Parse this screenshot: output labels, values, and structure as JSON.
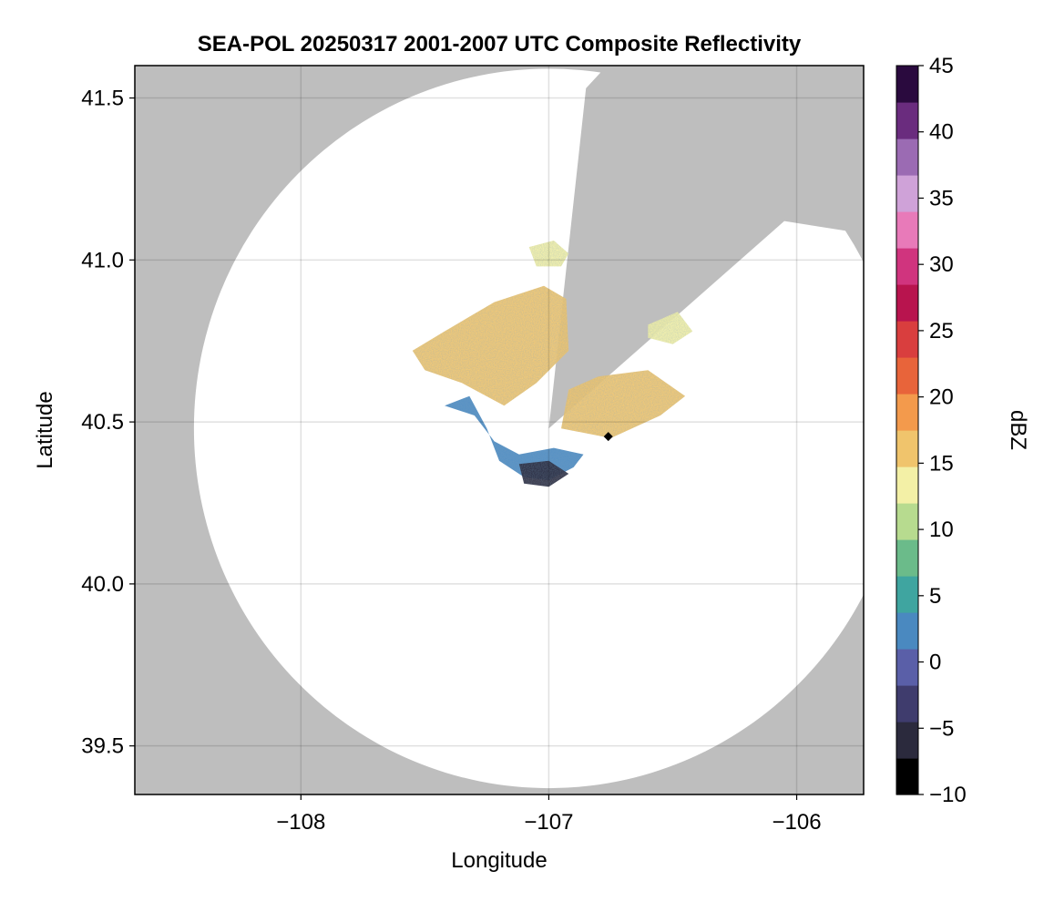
{
  "chart_data": {
    "type": "heatmap",
    "title": "SEA-POL 20250317 2001-2007 UTC Composite Reflectivity",
    "xlabel": "Longitude",
    "ylabel": "Latitude",
    "xlim": [
      -108.67,
      -105.73
    ],
    "ylim": [
      39.35,
      41.6
    ],
    "xticks": [
      -108,
      -107,
      -106
    ],
    "xtick_labels": [
      "−108",
      "−107",
      "−106"
    ],
    "yticks": [
      39.5,
      40.0,
      40.5,
      41.0,
      41.5
    ],
    "ytick_labels": [
      "39.5",
      "40.0",
      "40.5",
      "41.0",
      "41.5"
    ],
    "grid": true,
    "background_color": "#bebebe",
    "coverage_color": "#ffffff",
    "radar_center": {
      "lon": -107.0,
      "lat": 40.48
    },
    "coverage_radius_deg_lat": 1.11,
    "blocked_sector": {
      "from_point_to_lon_lat": [
        [
          -106.85,
          41.53
        ],
        [
          -106.05,
          41.12
        ]
      ]
    },
    "colorbar": {
      "label": "dBZ",
      "min": -10,
      "max": 45,
      "ticks": [
        -10,
        -5,
        0,
        5,
        10,
        15,
        20,
        25,
        30,
        35,
        40,
        45
      ],
      "tick_labels": [
        "−10",
        "−5",
        "0",
        "5",
        "10",
        "15",
        "20",
        "25",
        "30",
        "35",
        "40",
        "45"
      ],
      "colors": [
        "#000000",
        "#2b2a3d",
        "#3f3c6d",
        "#5a5fa8",
        "#4a89c0",
        "#3fa5a0",
        "#6bbb8a",
        "#b7db8f",
        "#f3f0a6",
        "#f0c46c",
        "#f39a4c",
        "#e8643a",
        "#d93e3e",
        "#b8144e",
        "#d0347e",
        "#e87ab9",
        "#cfa2d8",
        "#9b6bb3",
        "#6a2c7e",
        "#2a0a3e"
      ],
      "marker_color": "#000000"
    },
    "echo_regions": [
      {
        "name": "north-lobe",
        "polygon": [
          [
            -107.55,
            40.72
          ],
          [
            -107.42,
            40.78
          ],
          [
            -107.22,
            40.87
          ],
          [
            -107.02,
            40.92
          ],
          [
            -106.93,
            40.88
          ],
          [
            -106.92,
            40.72
          ],
          [
            -107.05,
            40.62
          ],
          [
            -107.18,
            40.55
          ],
          [
            -107.35,
            40.62
          ],
          [
            -107.5,
            40.66
          ]
        ],
        "mean_dbz": 15
      },
      {
        "name": "north-cell",
        "polygon": [
          [
            -107.08,
            41.04
          ],
          [
            -106.98,
            41.06
          ],
          [
            -106.92,
            41.02
          ],
          [
            -106.95,
            40.98
          ],
          [
            -107.05,
            40.98
          ]
        ],
        "mean_dbz": 13
      },
      {
        "name": "east-lobe",
        "polygon": [
          [
            -106.92,
            40.6
          ],
          [
            -106.8,
            40.64
          ],
          [
            -106.6,
            40.66
          ],
          [
            -106.45,
            40.58
          ],
          [
            -106.55,
            40.52
          ],
          [
            -106.75,
            40.45
          ],
          [
            -106.95,
            40.48
          ]
        ],
        "mean_dbz": 16
      },
      {
        "name": "east-cells",
        "polygon": [
          [
            -106.6,
            40.8
          ],
          [
            -106.48,
            40.84
          ],
          [
            -106.42,
            40.78
          ],
          [
            -106.5,
            40.74
          ],
          [
            -106.6,
            40.76
          ]
        ],
        "mean_dbz": 12
      },
      {
        "name": "southwest-arc",
        "polygon": [
          [
            -107.42,
            40.55
          ],
          [
            -107.32,
            40.58
          ],
          [
            -107.25,
            40.48
          ],
          [
            -107.2,
            40.38
          ],
          [
            -107.1,
            40.33
          ],
          [
            -107.0,
            40.32
          ],
          [
            -106.9,
            40.36
          ],
          [
            -106.86,
            40.4
          ],
          [
            -106.98,
            40.42
          ],
          [
            -107.12,
            40.4
          ],
          [
            -107.22,
            40.44
          ],
          [
            -107.3,
            40.52
          ]
        ],
        "mean_dbz": 3
      },
      {
        "name": "south-core",
        "polygon": [
          [
            -107.12,
            40.37
          ],
          [
            -107.0,
            40.38
          ],
          [
            -106.92,
            40.34
          ],
          [
            -107.0,
            40.3
          ],
          [
            -107.1,
            40.31
          ]
        ],
        "mean_dbz": -6
      }
    ]
  }
}
